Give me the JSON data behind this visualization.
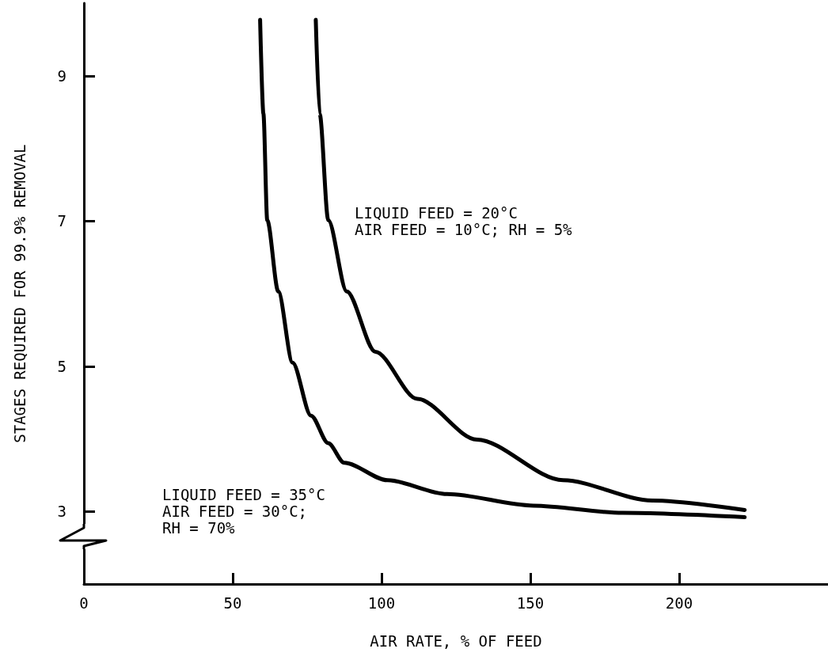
{
  "chart_data": {
    "type": "line",
    "xlabel": "AIR RATE, % OF FEED",
    "ylabel": "STAGES REQUIRED FOR 99.9% REMOVAL",
    "xlim": [
      0,
      250
    ],
    "xticks": [
      0,
      50,
      100,
      150,
      200
    ],
    "ylim": [
      2,
      10
    ],
    "yticks": [
      3,
      5,
      7,
      9
    ],
    "grid": false,
    "marker": "none",
    "line_style": "solid",
    "series": [
      {
        "color": "#000000",
        "x": [
          59.2,
          60.3,
          61.6,
          65.3,
          70.1,
          76.3,
          82.1,
          87.5,
          102,
          122,
          151,
          181,
          222
        ],
        "values": [
          9.77,
          8.48,
          7.01,
          6.03,
          5.05,
          4.32,
          3.94,
          3.67,
          3.43,
          3.24,
          3.08,
          2.98,
          2.92
        ]
      },
      {
        "color": "#000000",
        "x": [
          77.9,
          79.2,
          82.1,
          88.3,
          97.9,
          112,
          132,
          161,
          191,
          222
        ],
        "values": [
          9.77,
          8.48,
          7.01,
          6.03,
          5.2,
          4.55,
          3.99,
          3.43,
          3.15,
          3.02
        ]
      }
    ],
    "annotations": [
      "LIQUID FEED = 20°C\nAIR FEED = 10°C; RH = 5%",
      "LIQUID FEED = 35°C\nAIR FEED = 30°C;\nRH = 70%"
    ]
  }
}
